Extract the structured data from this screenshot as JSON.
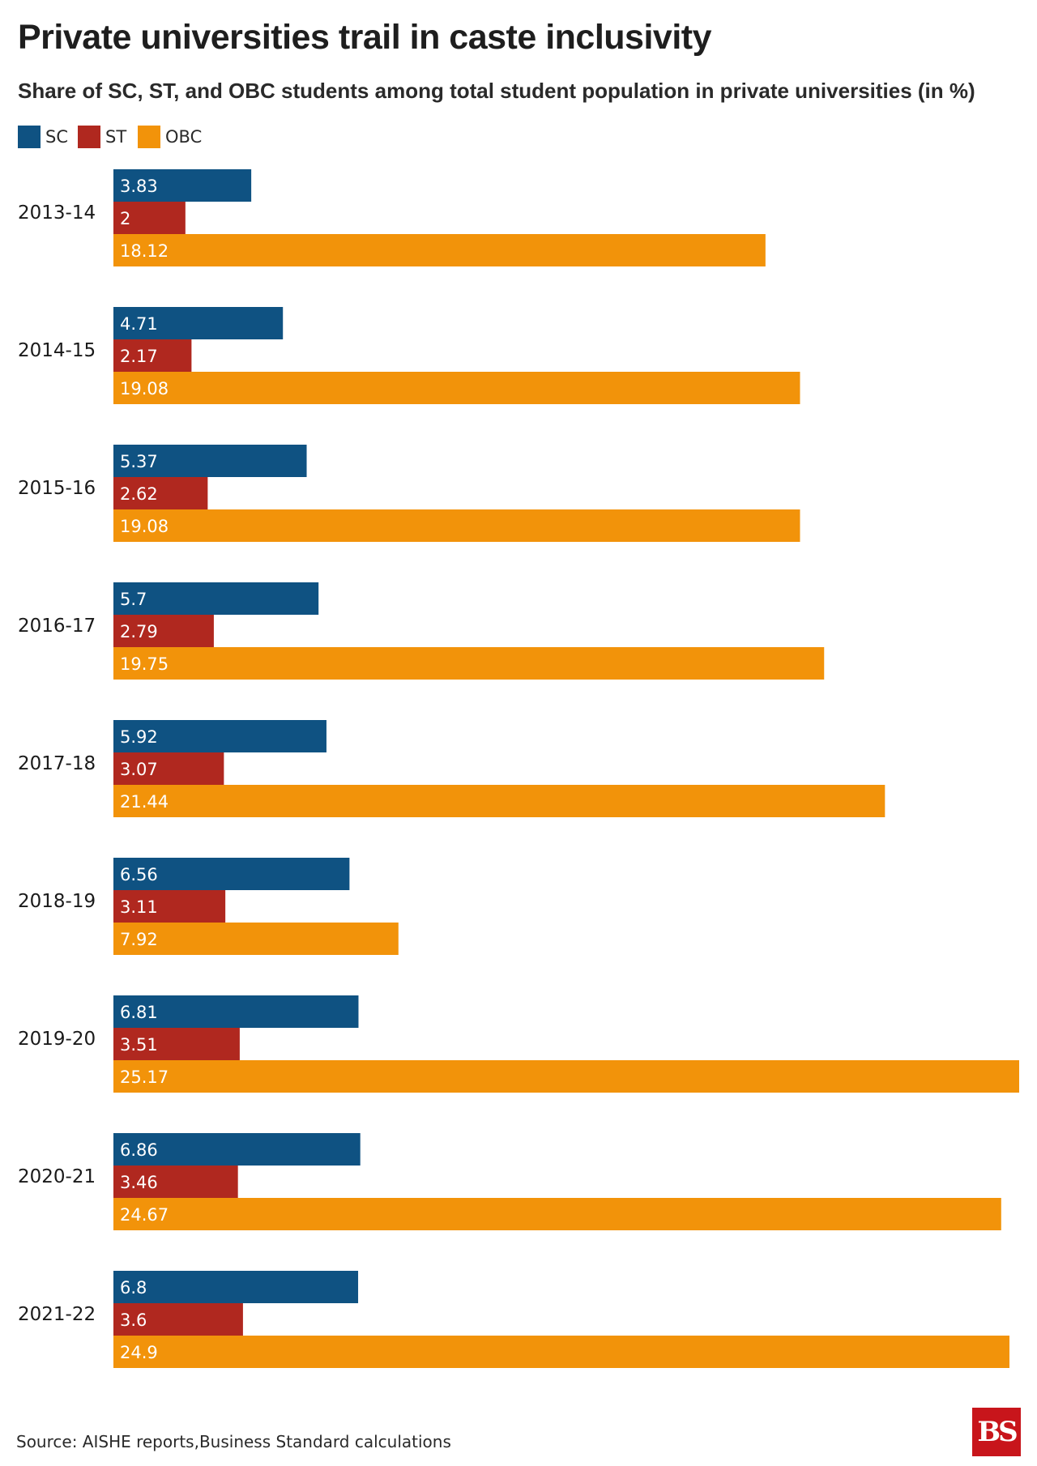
{
  "header": {
    "title": "Private universities trail in caste inclusivity",
    "subtitle": "Share of SC, ST, and OBC students among total student population in private universities (in %)"
  },
  "legend": [
    {
      "label": "SC",
      "color": "#0f5282"
    },
    {
      "label": "ST",
      "color": "#b0281f"
    },
    {
      "label": "OBC",
      "color": "#f2930a"
    }
  ],
  "chart_data": {
    "type": "bar",
    "orientation": "horizontal",
    "title": "Private universities trail in caste inclusivity",
    "subtitle": "Share of SC, ST, and OBC students among total student population in private universities (in %)",
    "categories": [
      "2013-14",
      "2014-15",
      "2015-16",
      "2016-17",
      "2017-18",
      "2018-19",
      "2019-20",
      "2020-21",
      "2021-22"
    ],
    "series": [
      {
        "name": "SC",
        "color": "#0f5282",
        "values": [
          3.83,
          4.71,
          5.37,
          5.7,
          5.92,
          6.56,
          6.81,
          6.86,
          6.8
        ]
      },
      {
        "name": "ST",
        "color": "#b0281f",
        "values": [
          2,
          2.17,
          2.62,
          2.79,
          3.07,
          3.11,
          3.51,
          3.46,
          3.6
        ]
      },
      {
        "name": "OBC",
        "color": "#f2930a",
        "values": [
          18.12,
          19.08,
          19.08,
          19.75,
          21.44,
          7.92,
          25.17,
          24.67,
          24.9
        ]
      }
    ],
    "value_labels": [
      [
        "3.83",
        "4.71",
        "5.37",
        "5.7",
        "5.92",
        "6.56",
        "6.81",
        "6.86",
        "6.8"
      ],
      [
        "2",
        "2.17",
        "2.62",
        "2.79",
        "3.07",
        "3.11",
        "3.51",
        "3.46",
        "3.6"
      ],
      [
        "18.12",
        "19.08",
        "19.08",
        "19.75",
        "21.44",
        "7.92",
        "25.17",
        "24.67",
        "24.9"
      ]
    ],
    "xlim": [
      0,
      25.17
    ],
    "grid": false,
    "legend_position": "top-left",
    "data_labels": "inside-start"
  },
  "footer": {
    "source": "Source: AISHE reports,Business Standard calculations",
    "logo_text": "BS"
  }
}
